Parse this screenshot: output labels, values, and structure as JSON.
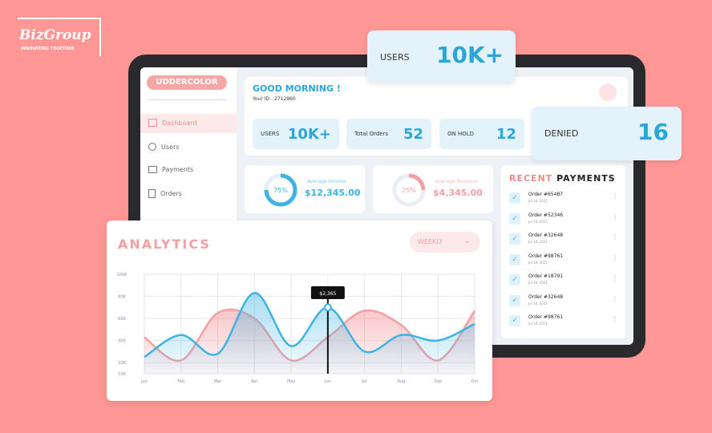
{
  "brand": {
    "name": "BizGroup",
    "tagline": "INNOVATING TOGETHER"
  },
  "app": {
    "logo": "UDDERCOLOR"
  },
  "header": {
    "greeting": "GOOD MORNING !",
    "user_id": "Your ID : 2712960"
  },
  "nav": [
    "Dashboard",
    "Users",
    "Payments",
    "Orders"
  ],
  "stats": [
    {
      "label": "USERS",
      "value": "10K+"
    },
    {
      "label": "Total Orders",
      "value": 52
    },
    {
      "label": "ON HOLD",
      "value": 12
    }
  ],
  "floating": {
    "users": {
      "label": "USERS",
      "value": "10K+"
    },
    "denied": {
      "label": "DENIED",
      "value": 16
    }
  },
  "kpis": [
    {
      "percent": {
        "value": 75,
        "label": "75%"
      },
      "label": "Average Income",
      "value": "$12,345.00"
    },
    {
      "percent": {
        "value": 25,
        "label": "25%"
      },
      "label": "Average Revenue",
      "value": "$4,345.00"
    }
  ],
  "payments": {
    "title_a": "RECENT",
    "title_b": "PAYMENTS",
    "items": [
      {
        "order": "Order #65487",
        "date": "Jul 18, 2021"
      },
      {
        "order": "Order #52346",
        "date": "Jul 18, 2021"
      },
      {
        "order": "Order #32648",
        "date": "Jul 18, 2021"
      },
      {
        "order": "Order #98761",
        "date": "Jul 18, 2021"
      },
      {
        "order": "Order #18791",
        "date": "Jul 18, 2021"
      },
      {
        "order": "Order #32648",
        "date": "Jul 18, 2021"
      },
      {
        "order": "Order #98761",
        "date": "Jul 18, 2021"
      }
    ]
  },
  "analytics": {
    "title": "ANALYTICS",
    "period": "WEEKLY",
    "tooltip": "$2,365",
    "categories": [
      "Jan",
      "Feb",
      "Mar",
      "Apr",
      "May",
      "Jun",
      "Jul",
      "Aug",
      "Sep",
      "Oct"
    ],
    "ylim": [
      10000,
      100000
    ],
    "yticks": [
      {
        "value": 10000,
        "label": "10K"
      },
      {
        "value": 20000,
        "label": "20K"
      },
      {
        "value": 40000,
        "label": "40K"
      },
      {
        "value": 60000,
        "label": "60K"
      },
      {
        "value": 80000,
        "label": "80K"
      },
      {
        "value": 100000,
        "label": "100K"
      }
    ],
    "series": [
      {
        "color": "#f4a0a3",
        "values": [
          43000,
          22000,
          65000,
          60000,
          22000,
          43000,
          67000,
          54000,
          22000,
          67000
        ]
      },
      {
        "color": "#3db3e3",
        "values": [
          25000,
          45000,
          28000,
          83000,
          35000,
          70000,
          30000,
          45000,
          40000,
          55000
        ]
      }
    ]
  }
}
